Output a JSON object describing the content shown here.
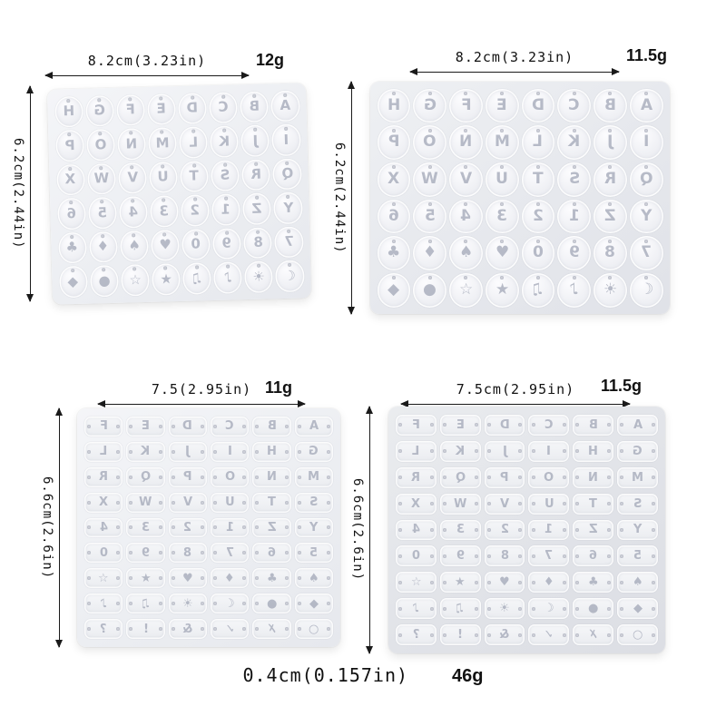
{
  "page": {
    "background": "#ffffff"
  },
  "panels": [
    {
      "name": "alphabet-mold-top-left",
      "shape": "round",
      "columns": 8,
      "width_label": "8.2cm(3.23in)",
      "weight_label": "12g",
      "height_label": "6.2cm(2.44in)",
      "rows": [
        "HGFEDCBA",
        "PONMLKJI",
        "XWVUTSRQ",
        "654321ZY",
        "♣♦♠♥0987",
        "◆●☆★♫♪☀☾"
      ]
    },
    {
      "name": "alphabet-mold-top-right",
      "shape": "round",
      "columns": 8,
      "width_label": "8.2cm(3.23in)",
      "weight_label": "11.5g",
      "height_label": "6.2cm(2.44in)",
      "rows": [
        "HGFEDCBA",
        "PONMLKJI",
        "XWVUTSRQ",
        "654321ZY",
        "♣♦♠♥0987",
        "◆●☆★♫♪☀☾"
      ]
    },
    {
      "name": "alphabet-mold-bottom-left",
      "shape": "bone",
      "columns": 6,
      "width_label": "7.5(2.95in)",
      "weight_label": "11g",
      "height_label": "6.6cm(2.6in)",
      "rows": [
        "FEDCBA",
        "LKJIHG",
        "RQPONM",
        "XWVUTS",
        "4321ZY",
        "098765",
        "☆★♥♦♣♠",
        "♪♫☀☾●◆",
        "?!&✓✗○"
      ]
    },
    {
      "name": "alphabet-mold-bottom-right",
      "shape": "bone",
      "columns": 6,
      "width_label": "7.5cm(2.95in)",
      "weight_label": "11.5g",
      "height_label": "6.6cm(2.6in)",
      "rows": [
        "FEDCBA",
        "LKJIHG",
        "RQPONM",
        "XWVUTS",
        "4321ZY",
        "098765",
        "☆★♥♦♣♠",
        "♪♫☀☾●◆",
        "?!&✓✗○"
      ]
    }
  ],
  "footer": {
    "thickness_label": "0.4cm(0.157in)",
    "total_weight_label": "46g"
  }
}
